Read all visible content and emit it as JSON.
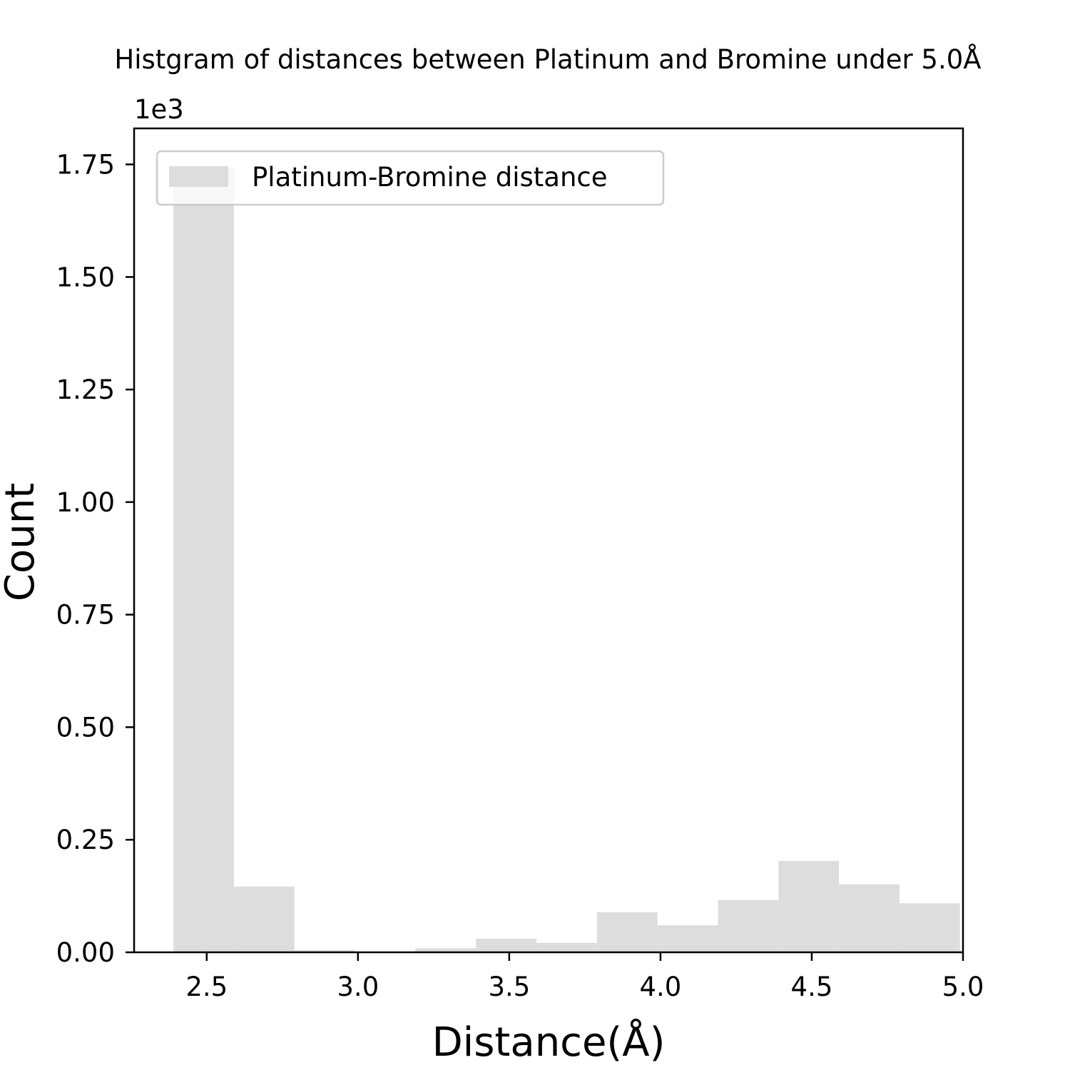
{
  "chart_data": {
    "type": "bar",
    "title": "Histgram of distances between Platinum and Bromine under 5.0Å",
    "xlabel": "Distance(Å)",
    "ylabel": "Count",
    "y_multiplier_label": "1e3",
    "xlim": [
      2.26,
      5.0
    ],
    "ylim": [
      0,
      1.83
    ],
    "xticks": [
      2.5,
      3.0,
      3.5,
      4.0,
      4.5,
      5.0
    ],
    "xtick_labels": [
      "2.5",
      "3.0",
      "3.5",
      "4.0",
      "4.5",
      "5.0"
    ],
    "yticks": [
      0.0,
      0.25,
      0.5,
      0.75,
      1.0,
      1.25,
      1.5,
      1.75
    ],
    "ytick_labels": [
      "0.00",
      "0.25",
      "0.50",
      "0.75",
      "1.00",
      "1.25",
      "1.50",
      "1.75"
    ],
    "bin_edges": [
      2.39,
      2.59,
      2.79,
      2.99,
      3.19,
      3.39,
      3.59,
      3.79,
      3.99,
      4.19,
      4.39,
      4.59,
      4.79,
      4.99
    ],
    "series": [
      {
        "name": "Platinum-Bromine distance",
        "color": "#dddddd",
        "values": [
          1.744,
          0.146,
          0.005,
          0.0,
          0.009,
          0.03,
          0.021,
          0.089,
          0.06,
          0.116,
          0.203,
          0.151,
          0.109
        ]
      }
    ],
    "legend": {
      "position": "top-left",
      "entries": [
        "Platinum-Bromine distance"
      ]
    },
    "grid": false
  }
}
